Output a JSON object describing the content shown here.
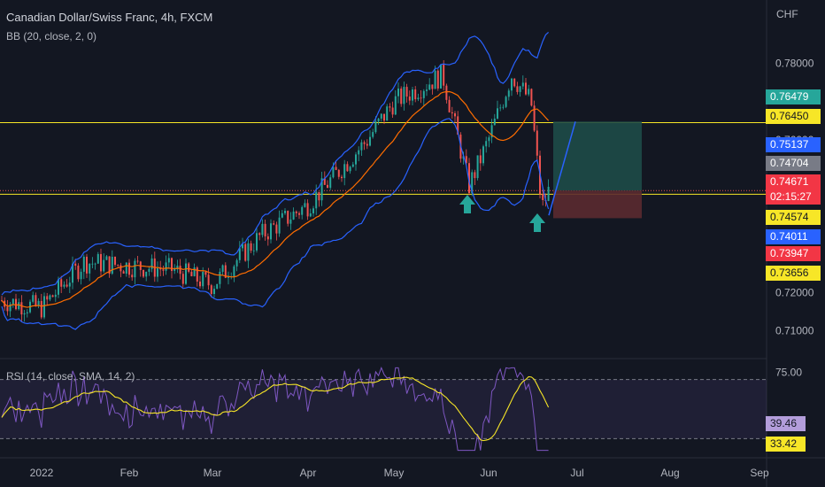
{
  "header": {
    "title": "Canadian Dollar/Swiss Franc, 4h, FXCM",
    "indicator": "BB (20, close, 2, 0)",
    "rsi_label": "RSI (14, close, SMA, 14, 2)",
    "currency": "CHF"
  },
  "colors": {
    "background": "#131722",
    "candle_up": "#26a69a",
    "candle_down": "#ef5350",
    "bb_band": "#2962ff",
    "bb_basis": "#ff6d00",
    "level_line": "#f7e627",
    "rsi_line": "#7e57c2",
    "rsi_ma": "#f7e627",
    "target_zone": "#1e4b48",
    "stop_zone": "#5b2a30"
  },
  "price_badges": [
    {
      "value": "0.76479",
      "bg": "#26a69a",
      "fg": "#ffffff"
    },
    {
      "value": "0.76450",
      "bg": "#f7e627",
      "fg": "#131722"
    },
    {
      "value": "0.75137",
      "bg": "#2962ff",
      "fg": "#ffffff"
    },
    {
      "value": "0.74704",
      "bg": "#787b86",
      "fg": "#ffffff"
    },
    {
      "value": "0.74671",
      "bg": "#f23645",
      "fg": "#ffffff"
    },
    {
      "value": "02:15:27",
      "bg": "#f23645",
      "fg": "#ffffff"
    },
    {
      "value": "0.74574",
      "bg": "#f7e627",
      "fg": "#131722"
    },
    {
      "value": "0.74011",
      "bg": "#2962ff",
      "fg": "#ffffff"
    },
    {
      "value": "0.73947",
      "bg": "#f23645",
      "fg": "#ffffff"
    },
    {
      "value": "0.73656",
      "bg": "#f7e627",
      "fg": "#131722"
    }
  ],
  "rsi_badges": [
    {
      "value": "39.46",
      "bg": "#b39ddb",
      "fg": "#131722"
    },
    {
      "value": "33.42",
      "bg": "#f7e627",
      "fg": "#131722"
    }
  ],
  "chart_data": [
    {
      "type": "line",
      "series_kind": "candlestick with bollinger bands",
      "x": [
        "2022",
        "Feb",
        "Mar",
        "Apr",
        "May",
        "Jun",
        "Jul",
        "Aug",
        "Sep"
      ],
      "ylabel": "CHF",
      "y_ticks": [
        "0.78000",
        "0.76000",
        "0.72000",
        "0.71000"
      ],
      "ylim": [
        0.705,
        0.792
      ],
      "horizontal_levels": [
        0.7645,
        0.74574
      ],
      "key_prices": {
        "last": 0.74671,
        "bb_upper": 0.75137,
        "bb_lower": 0.74011,
        "target": 0.76479,
        "stop": 0.73947
      },
      "price_path": [
        {
          "x": "2022",
          "y": 0.716
        },
        {
          "x": "mid-Jan",
          "y": 0.728
        },
        {
          "x": "Feb",
          "y": 0.727
        },
        {
          "x": "mid-Feb",
          "y": 0.726
        },
        {
          "x": "Mar",
          "y": 0.722
        },
        {
          "x": "mid-Mar",
          "y": 0.735
        },
        {
          "x": "Apr",
          "y": 0.743
        },
        {
          "x": "late-Apr",
          "y": 0.76
        },
        {
          "x": "May",
          "y": 0.77
        },
        {
          "x": "mid-May",
          "y": 0.777
        },
        {
          "x": "late-May",
          "y": 0.748
        },
        {
          "x": "Jun",
          "y": 0.76
        },
        {
          "x": "early-Jun",
          "y": 0.777
        },
        {
          "x": "mid-Jun",
          "y": 0.77
        },
        {
          "x": "late-Jun",
          "y": 0.742
        },
        {
          "x": "late-Jun+",
          "y": 0.7467
        }
      ],
      "grid": false
    },
    {
      "type": "line",
      "series_kind": "rsi",
      "y_ticks": [
        "75.00"
      ],
      "ylim": [
        20,
        80
      ],
      "bands": [
        70,
        30
      ],
      "rsi_last": 39.46,
      "rsi_ma_last": 33.42
    }
  ]
}
